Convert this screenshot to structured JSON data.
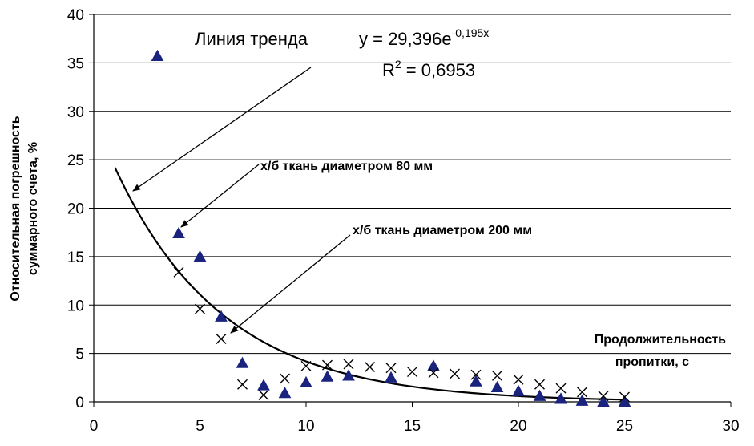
{
  "chart_data": {
    "type": "scatter",
    "title": "",
    "xlabel": "Продолжительность пропитки, с",
    "xlabel_lines": [
      "Продолжительность",
      "пропитки, с"
    ],
    "ylabel": "Относительная погрешность суммарного счета, %",
    "ylabel_lines": [
      "Относительная погрешность",
      "суммарного счета, %"
    ],
    "xlim": [
      0,
      30
    ],
    "ylim": [
      0,
      40
    ],
    "xticks": [
      0,
      5,
      10,
      15,
      20,
      25,
      30
    ],
    "yticks": [
      0,
      5,
      10,
      15,
      20,
      25,
      30,
      35,
      40
    ],
    "grid": "horizontal",
    "legend": "none",
    "series": [
      {
        "marker": "triangle",
        "color": "#1a237e",
        "points": [
          [
            3,
            35.7
          ],
          [
            4,
            17.4
          ],
          [
            5,
            15.0
          ],
          [
            6,
            8.8
          ],
          [
            7,
            4.0
          ],
          [
            8,
            1.7
          ],
          [
            9,
            0.9
          ],
          [
            10,
            2.0
          ],
          [
            11,
            2.6
          ],
          [
            12,
            2.7
          ],
          [
            14,
            2.5
          ],
          [
            16,
            3.7
          ],
          [
            18,
            2.1
          ],
          [
            19,
            1.5
          ],
          [
            20,
            1.1
          ],
          [
            21,
            0.6
          ],
          [
            22,
            0.3
          ],
          [
            23,
            0.1
          ],
          [
            24,
            0.0
          ],
          [
            25,
            0.0
          ]
        ]
      },
      {
        "marker": "cross",
        "color": "#000000",
        "points": [
          [
            4,
            13.4
          ],
          [
            5,
            9.6
          ],
          [
            6,
            6.5
          ],
          [
            7,
            1.8
          ],
          [
            8,
            0.7
          ],
          [
            9,
            2.4
          ],
          [
            10,
            3.7
          ],
          [
            11,
            3.8
          ],
          [
            12,
            3.9
          ],
          [
            13,
            3.6
          ],
          [
            14,
            3.5
          ],
          [
            15,
            3.1
          ],
          [
            16,
            3.0
          ],
          [
            17,
            2.9
          ],
          [
            18,
            2.8
          ],
          [
            19,
            2.7
          ],
          [
            20,
            2.3
          ],
          [
            21,
            1.8
          ],
          [
            22,
            1.4
          ],
          [
            23,
            1.0
          ],
          [
            24,
            0.6
          ],
          [
            25,
            0.5
          ]
        ]
      }
    ],
    "trendline": {
      "type": "exponential",
      "a": 29.396,
      "b": -0.195,
      "x_range": [
        1,
        25
      ],
      "color": "#000000"
    },
    "annotations": {
      "trend_label": "Линия тренда",
      "equation_base": "y = 29,396e",
      "equation_exp": "-0,195x",
      "r2_base": "R",
      "r2_sup": "2",
      "r2_value": " = 0,6953",
      "fabric80": "х/б ткань диаметром 80 мм",
      "fabric200": "х/б ткань диаметром 200 мм"
    }
  }
}
